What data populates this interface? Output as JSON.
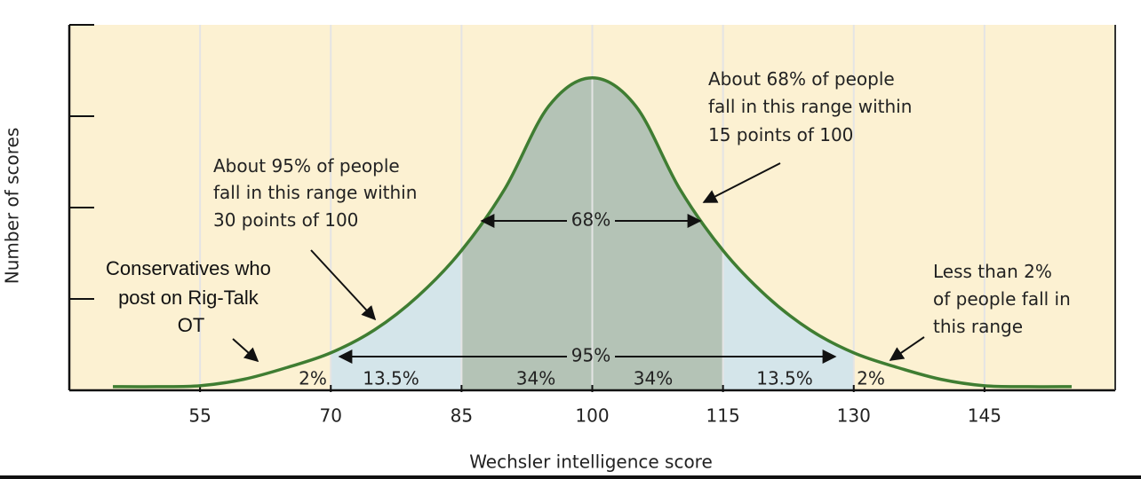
{
  "chart_data": {
    "type": "line",
    "x_label": "Wechsler intelligence score",
    "y_label": "Number of scores",
    "x": [
      45,
      50,
      55,
      60,
      65,
      70,
      75,
      80,
      85,
      90,
      95,
      100,
      105,
      110,
      115,
      120,
      125,
      130,
      135,
      140,
      145,
      150,
      155
    ],
    "series": [
      {
        "color": "#3f7d32",
        "values": [
          0.04,
          0.04,
          0.05,
          0.12,
          0.25,
          0.41,
          0.66,
          1.03,
          1.53,
          2.21,
          3.11,
          3.42,
          3.11,
          2.21,
          1.53,
          1.03,
          0.66,
          0.41,
          0.25,
          0.12,
          0.05,
          0.04,
          0.04
        ]
      }
    ],
    "bands": [
      {
        "from": 70,
        "to": 130,
        "color": "#d4e5ea"
      },
      {
        "from": 85,
        "to": 115,
        "color": "#b4c3b6"
      }
    ],
    "xlim": [
      40,
      160
    ],
    "xticks": [
      55,
      70,
      85,
      100,
      115,
      130,
      145
    ],
    "ylim": [
      0,
      4
    ],
    "yticks": [
      0,
      1,
      2,
      3,
      4
    ],
    "grid": true,
    "background": "#fcf1d2",
    "range_labels": [
      "68%",
      "95%"
    ],
    "region_labels": [
      "2%",
      "13.5%",
      "34%",
      "34%",
      "13.5%",
      "2%"
    ],
    "annotations": [
      [
        "About 68% of people",
        "fall in this range within",
        "15 points of 100"
      ],
      [
        "About 95% of people",
        "fall in this range within",
        "30 points of 100"
      ],
      [
        "Conservatives who",
        "post on Rig-Talk",
        "OT"
      ],
      [
        "Less than 2%",
        "of people fall in",
        "this range"
      ]
    ]
  }
}
